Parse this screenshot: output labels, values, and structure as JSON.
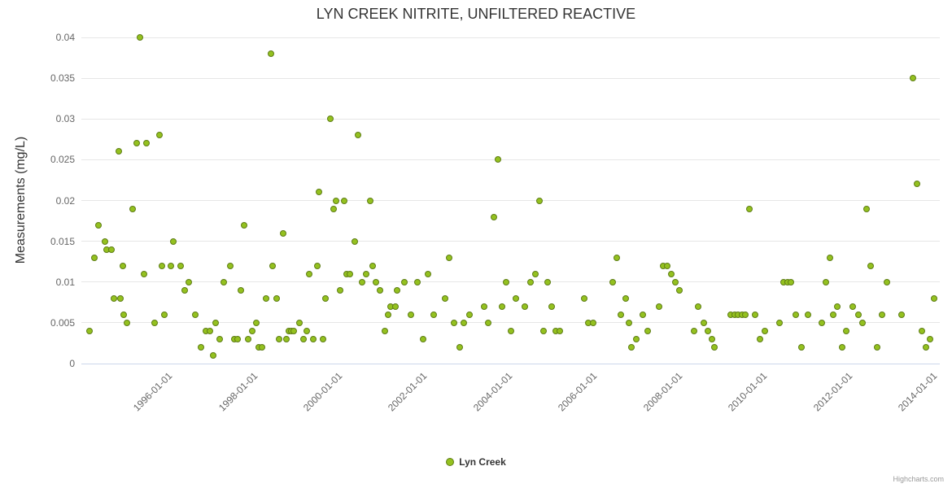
{
  "credits": "Highcharts.com",
  "chart_data": {
    "type": "scatter",
    "title": "LYN CREEK NITRITE, UNFILTERED REACTIVE",
    "xlabel": "",
    "ylabel": "Measurements (mg/L)",
    "grid": true,
    "legend_position": "bottom-center",
    "ylim": [
      0,
      0.04
    ],
    "xlim": [
      1994.0,
      2014.2
    ],
    "y_ticks": [
      0,
      0.005,
      0.01,
      0.015,
      0.02,
      0.025,
      0.03,
      0.035,
      0.04
    ],
    "y_tick_labels": [
      "0",
      "0.005",
      "0.01",
      "0.015",
      "0.02",
      "0.025",
      "0.03",
      "0.035",
      "0.04"
    ],
    "x_ticks": [
      1996,
      1998,
      2000,
      2002,
      2004,
      2006,
      2008,
      2010,
      2012,
      2014
    ],
    "x_tick_labels": [
      "1996-01-01",
      "1998-01-01",
      "2000-01-01",
      "2002-01-01",
      "2004-01-01",
      "2006-01-01",
      "2008-01-01",
      "2010-01-01",
      "2012-01-01",
      "2014-01-01"
    ],
    "series": [
      {
        "name": "Lyn Creek",
        "color": "#94c11f",
        "line_color": "#5f7d17",
        "points": [
          [
            1994.2,
            0.004
          ],
          [
            1994.3,
            0.013
          ],
          [
            1994.4,
            0.017
          ],
          [
            1994.55,
            0.015
          ],
          [
            1994.6,
            0.014
          ],
          [
            1994.7,
            0.014
          ],
          [
            1994.77,
            0.008
          ],
          [
            1994.88,
            0.026
          ],
          [
            1994.92,
            0.008
          ],
          [
            1994.97,
            0.012
          ],
          [
            1995.0,
            0.006
          ],
          [
            1995.08,
            0.005
          ],
          [
            1995.2,
            0.019
          ],
          [
            1995.3,
            0.027
          ],
          [
            1995.38,
            0.04
          ],
          [
            1995.48,
            0.011
          ],
          [
            1995.53,
            0.027
          ],
          [
            1995.72,
            0.005
          ],
          [
            1995.83,
            0.028
          ],
          [
            1995.9,
            0.012
          ],
          [
            1995.95,
            0.006
          ],
          [
            1996.1,
            0.012
          ],
          [
            1996.16,
            0.015
          ],
          [
            1996.33,
            0.012
          ],
          [
            1996.43,
            0.009
          ],
          [
            1996.53,
            0.01
          ],
          [
            1996.68,
            0.006
          ],
          [
            1996.81,
            0.002
          ],
          [
            1996.93,
            0.004
          ],
          [
            1997.02,
            0.004
          ],
          [
            1997.1,
            0.001
          ],
          [
            1997.16,
            0.005
          ],
          [
            1997.25,
            0.003
          ],
          [
            1997.35,
            0.01
          ],
          [
            1997.5,
            0.012
          ],
          [
            1997.6,
            0.003
          ],
          [
            1997.68,
            0.003
          ],
          [
            1997.75,
            0.009
          ],
          [
            1997.83,
            0.017
          ],
          [
            1997.92,
            0.003
          ],
          [
            1998.02,
            0.004
          ],
          [
            1998.12,
            0.005
          ],
          [
            1998.17,
            0.002
          ],
          [
            1998.25,
            0.002
          ],
          [
            1998.35,
            0.008
          ],
          [
            1998.46,
            0.038
          ],
          [
            1998.5,
            0.012
          ],
          [
            1998.6,
            0.008
          ],
          [
            1998.65,
            0.003
          ],
          [
            1998.75,
            0.016
          ],
          [
            1998.83,
            0.003
          ],
          [
            1998.88,
            0.004
          ],
          [
            1998.94,
            0.004
          ],
          [
            1999.0,
            0.004
          ],
          [
            1999.13,
            0.005
          ],
          [
            1999.23,
            0.003
          ],
          [
            1999.3,
            0.004
          ],
          [
            1999.36,
            0.011
          ],
          [
            1999.46,
            0.003
          ],
          [
            1999.55,
            0.012
          ],
          [
            1999.6,
            0.021
          ],
          [
            1999.69,
            0.003
          ],
          [
            1999.74,
            0.008
          ],
          [
            1999.86,
            0.03
          ],
          [
            1999.94,
            0.019
          ],
          [
            1999.99,
            0.02
          ],
          [
            2000.09,
            0.009
          ],
          [
            2000.18,
            0.02
          ],
          [
            2000.24,
            0.011
          ],
          [
            2000.32,
            0.011
          ],
          [
            2000.43,
            0.015
          ],
          [
            2000.51,
            0.028
          ],
          [
            2000.61,
            0.01
          ],
          [
            2000.7,
            0.011
          ],
          [
            2000.8,
            0.02
          ],
          [
            2000.86,
            0.012
          ],
          [
            2000.93,
            0.01
          ],
          [
            2001.03,
            0.009
          ],
          [
            2001.14,
            0.004
          ],
          [
            2001.22,
            0.006
          ],
          [
            2001.28,
            0.007
          ],
          [
            2001.39,
            0.007
          ],
          [
            2001.43,
            0.009
          ],
          [
            2001.6,
            0.01
          ],
          [
            2001.75,
            0.006
          ],
          [
            2001.91,
            0.01
          ],
          [
            2002.04,
            0.003
          ],
          [
            2002.16,
            0.011
          ],
          [
            2002.29,
            0.006
          ],
          [
            2002.56,
            0.008
          ],
          [
            2002.65,
            0.013
          ],
          [
            2002.77,
            0.005
          ],
          [
            2002.9,
            0.002
          ],
          [
            2003.0,
            0.005
          ],
          [
            2003.13,
            0.006
          ],
          [
            2003.47,
            0.007
          ],
          [
            2003.57,
            0.005
          ],
          [
            2003.71,
            0.018
          ],
          [
            2003.8,
            0.025
          ],
          [
            2003.9,
            0.007
          ],
          [
            2004.0,
            0.01
          ],
          [
            2004.11,
            0.004
          ],
          [
            2004.22,
            0.008
          ],
          [
            2004.43,
            0.007
          ],
          [
            2004.57,
            0.01
          ],
          [
            2004.68,
            0.011
          ],
          [
            2004.78,
            0.02
          ],
          [
            2004.88,
            0.004
          ],
          [
            2004.97,
            0.01
          ],
          [
            2005.07,
            0.007
          ],
          [
            2005.16,
            0.004
          ],
          [
            2005.26,
            0.004
          ],
          [
            2005.83,
            0.008
          ],
          [
            2005.93,
            0.005
          ],
          [
            2006.05,
            0.005
          ],
          [
            2006.5,
            0.01
          ],
          [
            2006.6,
            0.013
          ],
          [
            2006.7,
            0.006
          ],
          [
            2006.8,
            0.008
          ],
          [
            2006.88,
            0.005
          ],
          [
            2006.94,
            0.002
          ],
          [
            2007.06,
            0.003
          ],
          [
            2007.21,
            0.006
          ],
          [
            2007.33,
            0.004
          ],
          [
            2007.6,
            0.007
          ],
          [
            2007.69,
            0.012
          ],
          [
            2007.79,
            0.012
          ],
          [
            2007.88,
            0.011
          ],
          [
            2007.98,
            0.01
          ],
          [
            2008.07,
            0.009
          ],
          [
            2008.42,
            0.004
          ],
          [
            2008.51,
            0.007
          ],
          [
            2008.65,
            0.005
          ],
          [
            2008.74,
            0.004
          ],
          [
            2008.84,
            0.003
          ],
          [
            2008.9,
            0.002
          ],
          [
            2009.28,
            0.006
          ],
          [
            2009.38,
            0.006
          ],
          [
            2009.46,
            0.006
          ],
          [
            2009.55,
            0.006
          ],
          [
            2009.63,
            0.006
          ],
          [
            2009.72,
            0.019
          ],
          [
            2009.85,
            0.006
          ],
          [
            2009.97,
            0.003
          ],
          [
            2010.08,
            0.004
          ],
          [
            2010.43,
            0.005
          ],
          [
            2010.52,
            0.01
          ],
          [
            2010.62,
            0.01
          ],
          [
            2010.7,
            0.01
          ],
          [
            2010.81,
            0.006
          ],
          [
            2010.94,
            0.002
          ],
          [
            2011.09,
            0.006
          ],
          [
            2011.42,
            0.005
          ],
          [
            2011.52,
            0.01
          ],
          [
            2011.61,
            0.013
          ],
          [
            2011.7,
            0.006
          ],
          [
            2011.79,
            0.007
          ],
          [
            2011.9,
            0.002
          ],
          [
            2012.0,
            0.004
          ],
          [
            2012.15,
            0.007
          ],
          [
            2012.28,
            0.006
          ],
          [
            2012.38,
            0.005
          ],
          [
            2012.48,
            0.019
          ],
          [
            2012.57,
            0.012
          ],
          [
            2012.72,
            0.002
          ],
          [
            2012.85,
            0.006
          ],
          [
            2012.95,
            0.01
          ],
          [
            2013.3,
            0.006
          ],
          [
            2013.57,
            0.035
          ],
          [
            2013.67,
            0.022
          ],
          [
            2013.78,
            0.004
          ],
          [
            2013.88,
            0.002
          ],
          [
            2013.97,
            0.003
          ],
          [
            2014.07,
            0.008
          ]
        ]
      }
    ]
  }
}
